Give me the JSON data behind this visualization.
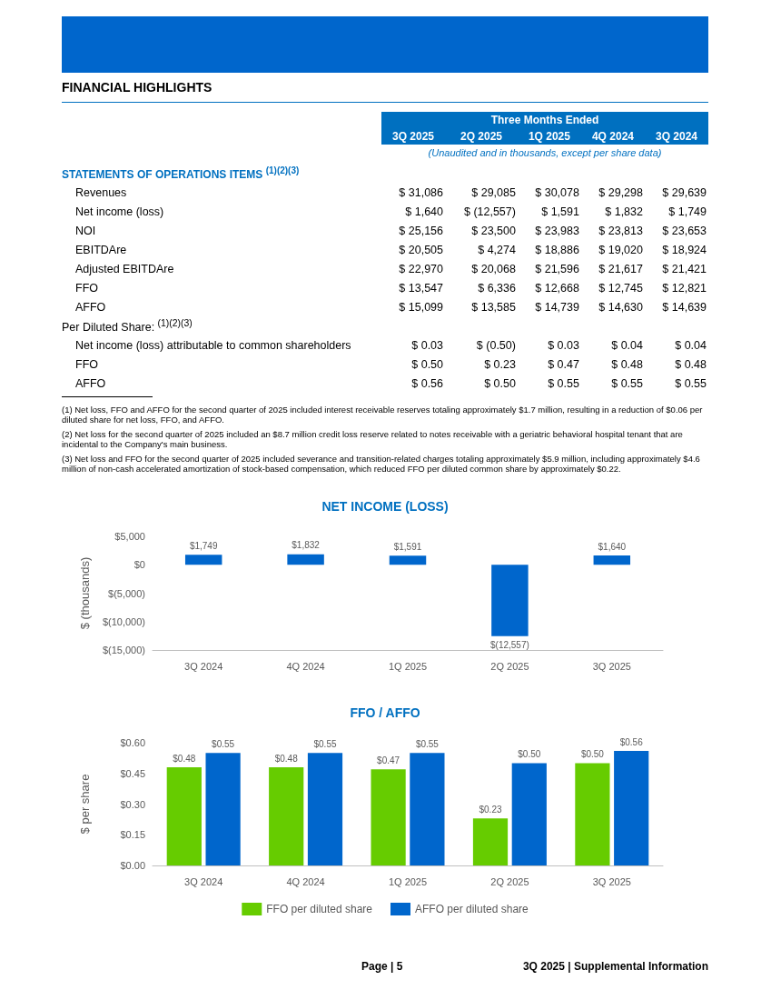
{
  "chart_data": [
    {
      "type": "other",
      "title": "FINANCIAL HIGHLIGHTS",
      "subtitle": "Three Months Ended",
      "categories": [
        "STATEMENTS OF OPERATIONS ITEMS $^{(1)(2)(3)}$",
        "Revenues",
        "Net income (loss)",
        "NOI",
        "EBITDAre",
        "Adjusted EBITDAre",
        "FFO",
        "AFFO",
        "Per Diluted Share: $^{(1)(2)(3)}$",
        "Net income  (loss) attributable to common shareholders",
        "FFO",
        "AFFO"
      ],
      "series": [
        {
          "name": "3Q 2025",
          "values": [
            null,
            31086,
            1640,
            25156,
            20505,
            22970,
            13547,
            15099,
            null,
            0.03,
            0.5,
            0.56
          ],
          "value_labels": [
            null,
            "$ 31,086",
            "$ 1,640",
            "$ 25,156",
            "$ 20,505",
            "$ 22,970",
            "$ 13,547",
            "$ 15,099",
            null,
            "$ 0.03",
            "$ 0.50",
            "$ 0.56"
          ]
        },
        {
          "name": "2Q 2025",
          "values": [
            null,
            29085,
            -12557,
            23500,
            4274,
            20068,
            6336,
            13585,
            null,
            -0.5,
            0.23,
            0.5
          ],
          "value_labels": [
            null,
            "$ 29,085",
            "$ (12,557)",
            "$ 23,500",
            "$ 4,274",
            "$ 20,068",
            "$ 6,336",
            "$ 13,585",
            null,
            "$ (0.50)",
            "$ 0.23",
            "$ 0.50"
          ]
        },
        {
          "name": "1Q 2025",
          "values": [
            null,
            30078,
            1591,
            23983,
            18886,
            21596,
            12668,
            14739,
            null,
            0.03,
            0.47,
            0.55
          ],
          "value_labels": [
            null,
            "$ 30,078",
            "$ 1,591",
            "$ 23,983",
            "$ 18,886",
            "$ 21,596",
            "$ 12,668",
            "$ 14,739",
            null,
            "$ 0.03",
            "$ 0.47",
            "$ 0.55"
          ]
        },
        {
          "name": "4Q 2024",
          "values": [
            null,
            29298,
            1832,
            23813,
            19020,
            21617,
            12745,
            14630,
            null,
            0.04,
            0.48,
            0.55
          ],
          "value_labels": [
            null,
            "$ 29,298",
            "$ 1,832",
            "$ 23,813",
            "$ 19,020",
            "$ 21,617",
            "$ 12,745",
            "$ 14,630",
            null,
            "$ 0.04",
            "$ 0.48",
            "$ 0.55"
          ]
        },
        {
          "name": "3Q 2024",
          "values": [
            null,
            29639,
            1749,
            23653,
            18924,
            21421,
            12821,
            14639,
            null,
            0.04,
            0.48,
            0.55
          ],
          "value_labels": [
            null,
            "$ 29,639",
            "$ 1,749",
            "$ 23,653",
            "$ 18,924",
            "$ 21,421",
            "$ 12,821",
            "$ 14,639",
            null,
            "$ 0.04",
            "$ 0.48",
            "$ 0.55"
          ]
        }
      ],
      "annotations": [
        "(Unaudited and in thousands, except per share data)",
        "(1) Net loss, FFO and AFFO for the second quarter of 2025 included interest receivable reserves totaling approximately $1.7 million, resulting in a reduction of $0.06 per diluted share for net loss, FFO, and AFFO.",
        "(2) Net loss for the second quarter of 2025 included an $8.7 million credit loss reserve related to notes receivable with a geriatric behavioral hospital tenant that are incidental to the Company's main business.",
        "(3) Net loss and FFO for the second quarter of 2025 included severance and transition-related charges totaling approximately $5.9 million, including approximately $4.6 million of non-cash accelerated amortization of stock-based compensation, which reduced FFO per diluted common share by approximately $0.22.",
        "Page | 5",
        "3Q 2025 | Supplemental Information"
      ]
    },
    {
      "type": "bar",
      "title": "NET INCOME (LOSS)",
      "ylabel": "$ (thousands)",
      "categories": [
        "3Q 2024",
        "4Q 2024",
        "1Q 2025",
        "2Q 2025",
        "3Q 2025"
      ],
      "values": [
        1749,
        1832,
        1591,
        -12557,
        1640
      ],
      "color": "#0066cc",
      "value_labels": [
        "$1,749",
        "$1,832",
        "$1,591",
        "$(12,557)",
        "$1,640"
      ],
      "ylim": [
        -15000,
        5000
      ],
      "yticks": [
        {
          "value": -15000,
          "label": "$(15,000)"
        },
        {
          "value": -10000,
          "label": "$(10,000)"
        },
        {
          "value": -5000,
          "label": "$(5,000)"
        },
        {
          "value": 0,
          "label": "$0"
        },
        {
          "value": 5000,
          "label": "$5,000"
        }
      ],
      "grid": false,
      "legend": false
    },
    {
      "type": "bar",
      "title": "FFO / AFFO",
      "ylabel": "$ per share",
      "categories": [
        "3Q 2024",
        "4Q 2024",
        "1Q 2025",
        "2Q 2025",
        "3Q 2025"
      ],
      "series": [
        {
          "name": "FFO per diluted share",
          "color": "#66cc00",
          "values": [
            0.48,
            0.48,
            0.47,
            0.23,
            0.5
          ],
          "value_labels": [
            "$0.48",
            "$0.48",
            "$0.47",
            "$0.23",
            "$0.50"
          ]
        },
        {
          "name": "AFFO per diluted share",
          "color": "#0066cc",
          "values": [
            0.55,
            0.55,
            0.55,
            0.5,
            0.56
          ],
          "value_labels": [
            "$0.55",
            "$0.55",
            "$0.55",
            "$0.50",
            "$0.56"
          ]
        }
      ],
      "ylim": [
        0,
        0.6
      ],
      "yticks": [
        {
          "value": 0,
          "label": "$0.00"
        },
        {
          "value": 0.15,
          "label": "$0.15"
        },
        {
          "value": 0.3,
          "label": "$0.30"
        },
        {
          "value": 0.45,
          "label": "$0.45"
        },
        {
          "value": 0.6,
          "label": "$0.60"
        }
      ],
      "grid": false,
      "legend": "bottom"
    }
  ]
}
